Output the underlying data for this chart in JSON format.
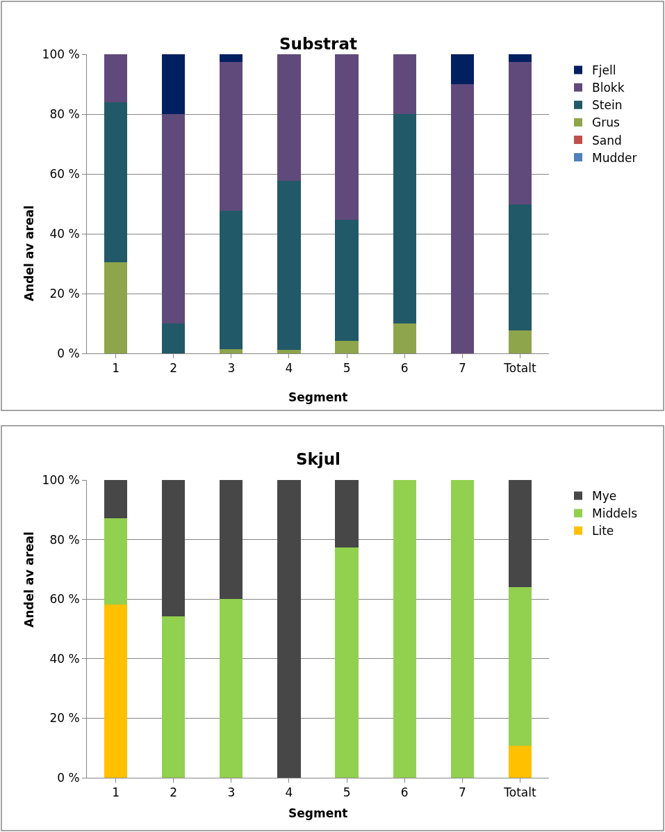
{
  "chart_data": [
    {
      "type": "bar",
      "stacked": true,
      "title": "Substrat",
      "xlabel": "Segment",
      "ylabel": "Andel av areal",
      "categories": [
        "1",
        "2",
        "3",
        "4",
        "5",
        "6",
        "7",
        "Totalt"
      ],
      "series": [
        {
          "name": "Mudder",
          "color": "#4f81bd",
          "values": [
            0,
            0,
            0,
            0,
            0,
            0,
            0,
            0
          ]
        },
        {
          "name": "Sand",
          "color": "#c0504d",
          "values": [
            0,
            0,
            0,
            0,
            0,
            0,
            0,
            0
          ]
        },
        {
          "name": "Grus",
          "color": "#8ea54b",
          "values": [
            30.5,
            0,
            1.3,
            1.1,
            4.1,
            9.9,
            0,
            7.6
          ]
        },
        {
          "name": "Stein",
          "color": "#215968",
          "values": [
            53.4,
            10,
            46.3,
            56.6,
            40.5,
            70.1,
            0,
            42.2
          ]
        },
        {
          "name": "Blokk",
          "color": "#604a7b",
          "values": [
            16.1,
            70,
            49.9,
            42.3,
            55.4,
            20,
            90,
            47.7
          ]
        },
        {
          "name": "Fjell",
          "color": "#002060",
          "values": [
            0,
            20,
            2.5,
            0,
            0,
            0,
            10,
            2.5
          ]
        }
      ],
      "ylim": [
        0,
        100
      ],
      "yticks": [
        {
          "value": 0,
          "label": "0 %"
        },
        {
          "value": 20,
          "label": "20 %"
        },
        {
          "value": 40,
          "label": "40 %"
        },
        {
          "value": 60,
          "label": "60 %"
        },
        {
          "value": 80,
          "label": "80 %"
        },
        {
          "value": 100,
          "label": "100 %"
        }
      ],
      "grid": "y",
      "legend": "right"
    },
    {
      "type": "bar",
      "stacked": true,
      "title": "Skjul",
      "xlabel": "Segment",
      "ylabel": "Andel av areal",
      "categories": [
        "1",
        "2",
        "3",
        "4",
        "5",
        "6",
        "7",
        "Totalt"
      ],
      "series": [
        {
          "name": "Lite",
          "color": "#ffc000",
          "values": [
            58.1,
            0,
            0,
            0,
            0,
            0,
            0,
            10.7
          ]
        },
        {
          "name": "Middels",
          "color": "#92d050",
          "values": [
            29,
            54.3,
            60,
            0,
            77.3,
            100,
            100,
            53.4
          ]
        },
        {
          "name": "Mye",
          "color": "#474747",
          "values": [
            12.9,
            45.7,
            40,
            100,
            22.7,
            0,
            0,
            35.9
          ]
        }
      ],
      "ylim": [
        0,
        100
      ],
      "yticks": [
        {
          "value": 0,
          "label": "0 %"
        },
        {
          "value": 20,
          "label": "20 %"
        },
        {
          "value": 40,
          "label": "40 %"
        },
        {
          "value": 60,
          "label": "60 %"
        },
        {
          "value": 80,
          "label": "80 %"
        },
        {
          "value": 100,
          "label": "100 %"
        }
      ],
      "grid": "y",
      "legend": "right"
    }
  ]
}
